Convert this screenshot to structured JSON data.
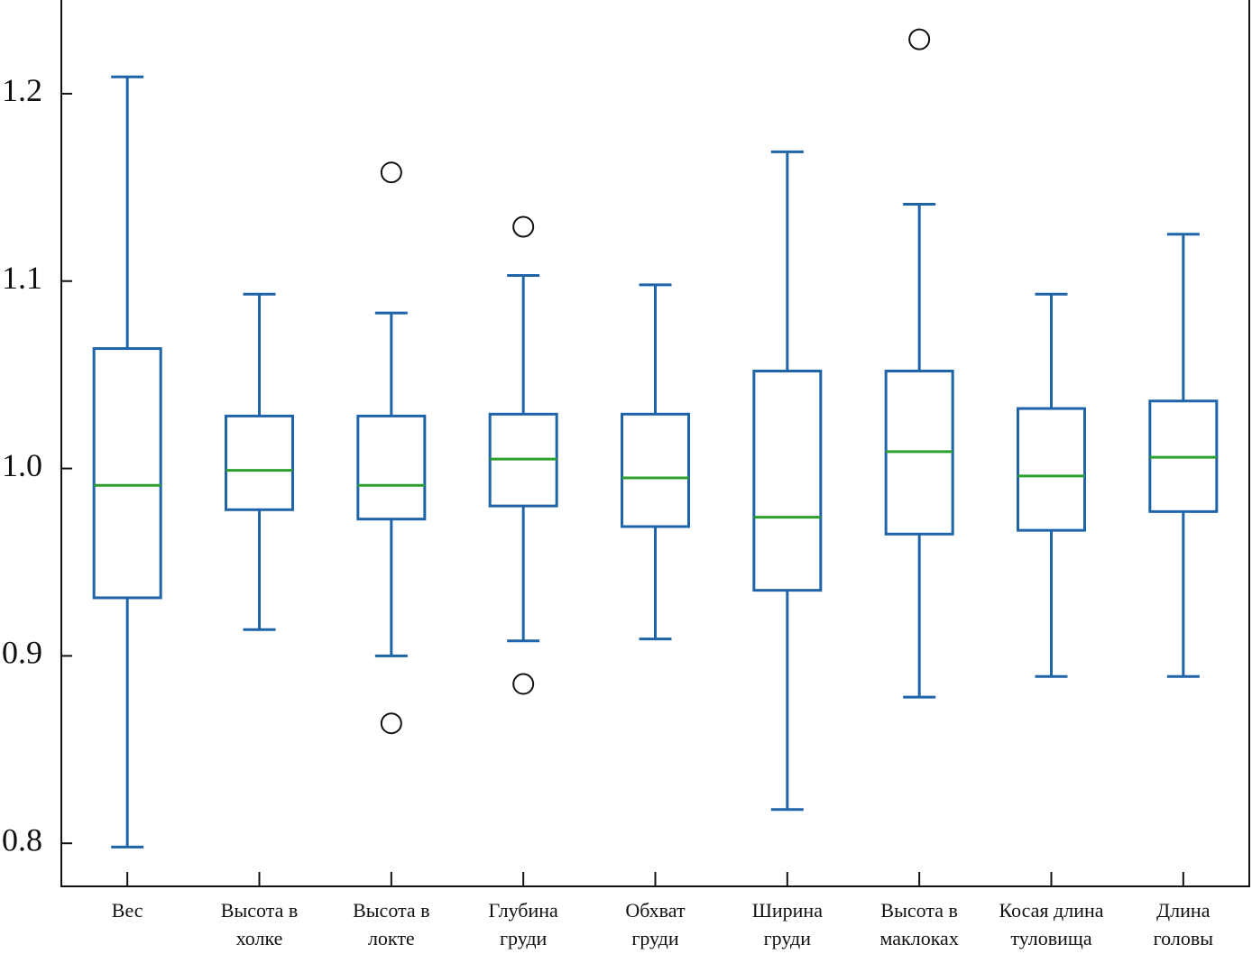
{
  "chart_data": {
    "type": "box",
    "categories": [
      "Вес",
      "Высота в\nхолке",
      "Высота в\nлокте",
      "Глубина\nгруди",
      "Обхват\nгруди",
      "Ширина\nгруди",
      "Высота в\nмаклоках",
      "Косая длина\nтуловища",
      "Длина\nголовы"
    ],
    "boxes": [
      {
        "min": 0.798,
        "q1": 0.931,
        "median": 0.991,
        "q3": 1.064,
        "max": 1.209,
        "outliers": []
      },
      {
        "min": 0.914,
        "q1": 0.978,
        "median": 0.999,
        "q3": 1.028,
        "max": 1.093,
        "outliers": []
      },
      {
        "min": 0.9,
        "q1": 0.973,
        "median": 0.991,
        "q3": 1.028,
        "max": 1.083,
        "outliers": [
          1.158,
          0.864
        ]
      },
      {
        "min": 0.908,
        "q1": 0.98,
        "median": 1.005,
        "q3": 1.029,
        "max": 1.103,
        "outliers": [
          1.129,
          0.885
        ]
      },
      {
        "min": 0.909,
        "q1": 0.969,
        "median": 0.995,
        "q3": 1.029,
        "max": 1.098,
        "outliers": []
      },
      {
        "min": 0.818,
        "q1": 0.935,
        "median": 0.974,
        "q3": 1.052,
        "max": 1.169,
        "outliers": []
      },
      {
        "min": 0.878,
        "q1": 0.965,
        "median": 1.009,
        "q3": 1.052,
        "max": 1.141,
        "outliers": [
          1.229
        ]
      },
      {
        "min": 0.889,
        "q1": 0.967,
        "median": 0.996,
        "q3": 1.032,
        "max": 1.093,
        "outliers": []
      },
      {
        "min": 0.889,
        "q1": 0.977,
        "median": 1.006,
        "q3": 1.036,
        "max": 1.125,
        "outliers": []
      }
    ],
    "box_color": "#1f64a8",
    "median_color": "#2ca02c",
    "ylim": [
      0.777,
      1.25
    ],
    "yticks": [
      0.8,
      0.9,
      {
        "value": 1,
        "label": "1.0"
      },
      1.1,
      1.2
    ]
  }
}
